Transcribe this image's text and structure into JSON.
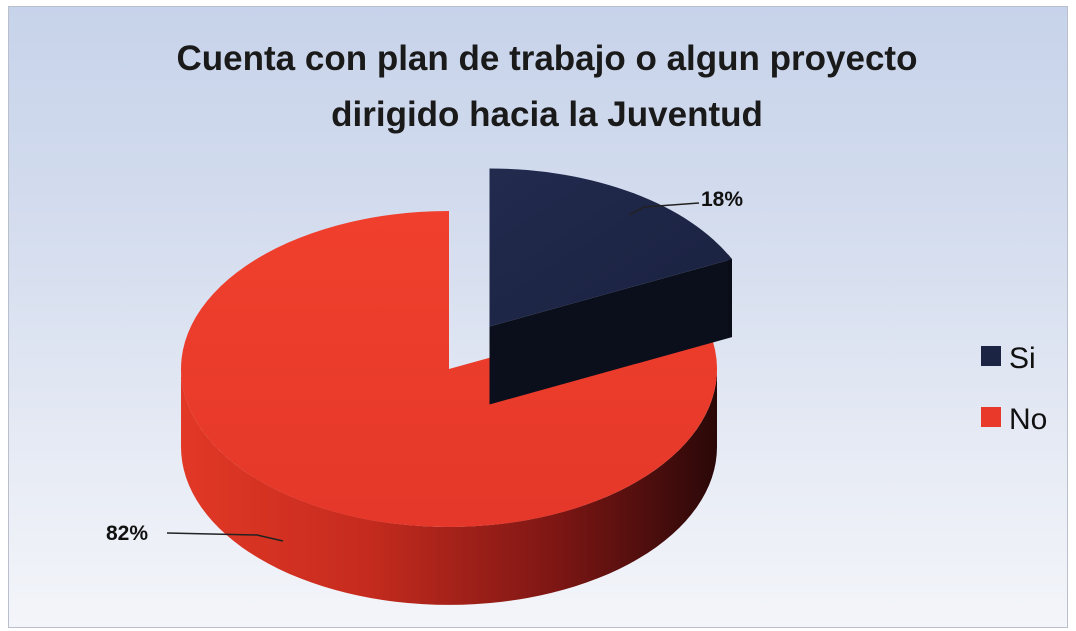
{
  "chart_data": {
    "type": "pie",
    "title": "Cuenta con plan de trabajo o algun proyecto dirigido hacia la Juventud",
    "title_lines": [
      "Cuenta con plan de trabajo o algun proyecto",
      "dirigido hacia la Juventud"
    ],
    "categories": [
      "Si",
      "No"
    ],
    "values": [
      18,
      82
    ],
    "labels": [
      "18%",
      "82%"
    ],
    "colors": [
      "#1c2444",
      "#e8392a"
    ],
    "exploded": "Si",
    "style": "3d",
    "legend": {
      "position": "right",
      "entries": [
        "Si",
        "No"
      ]
    }
  }
}
